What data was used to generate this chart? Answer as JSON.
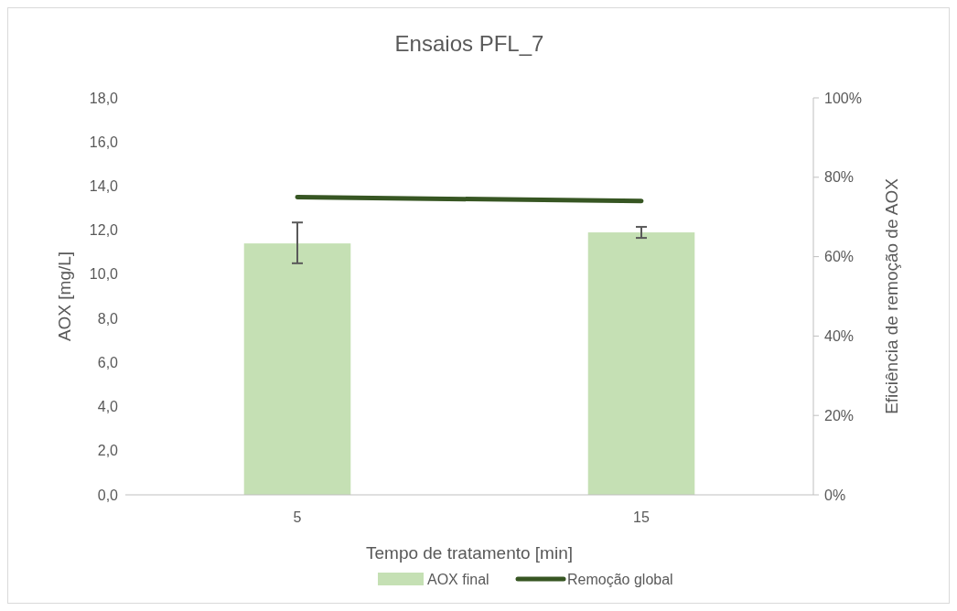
{
  "chart_data": {
    "type": "bar",
    "title": "Ensaios PFL_7",
    "xlabel": "Tempo de tratamento [min]",
    "ylabel": "AOX [mg/L]",
    "y2label": "Eficiência de remoção de AOX",
    "categories": [
      "5",
      "15"
    ],
    "series": [
      {
        "name": "AOX final",
        "type": "bar",
        "color": "#c5e0b4",
        "values": [
          11.4,
          11.9
        ],
        "errors": [
          [
            10.5,
            12.35
          ],
          [
            11.65,
            12.15
          ]
        ]
      },
      {
        "name": "Remoção global",
        "type": "line",
        "axis": "y2",
        "color": "#375623",
        "values": [
          75,
          74
        ]
      }
    ],
    "ylim": [
      0,
      18
    ],
    "yticks": [
      {
        "value": 0,
        "label": "0,0"
      },
      {
        "value": 2,
        "label": "2,0"
      },
      {
        "value": 4,
        "label": "4,0"
      },
      {
        "value": 6,
        "label": "6,0"
      },
      {
        "value": 8,
        "label": "8,0"
      },
      {
        "value": 10,
        "label": "10,0"
      },
      {
        "value": 12,
        "label": "12,0"
      },
      {
        "value": 14,
        "label": "14,0"
      },
      {
        "value": 16,
        "label": "16,0"
      },
      {
        "value": 18,
        "label": "18,0"
      }
    ],
    "y2lim": [
      0,
      100
    ],
    "y2ticks": [
      {
        "value": 0,
        "label": "0%"
      },
      {
        "value": 20,
        "label": "20%"
      },
      {
        "value": 40,
        "label": "40%"
      },
      {
        "value": 60,
        "label": "60%"
      },
      {
        "value": 80,
        "label": "80%"
      },
      {
        "value": 100,
        "label": "100%"
      }
    ],
    "legend": "bottom",
    "grid": false,
    "marker": "none",
    "line_style": "solid"
  }
}
